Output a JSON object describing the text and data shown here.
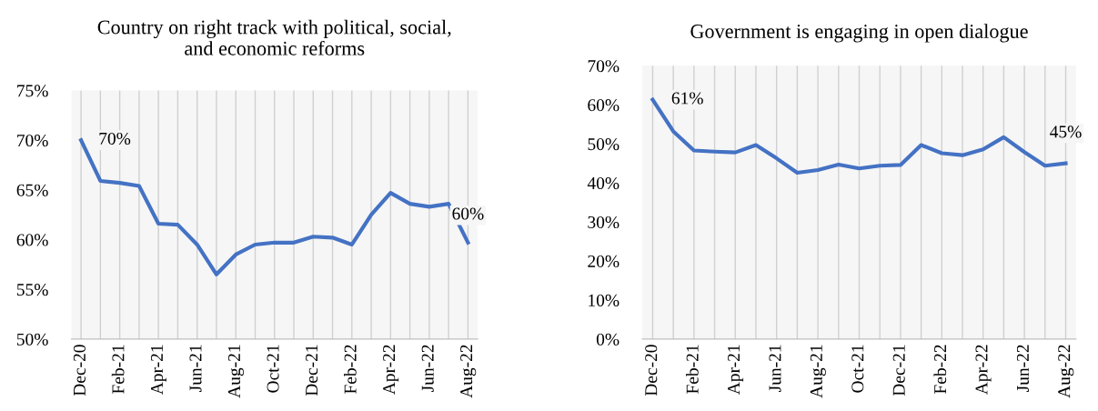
{
  "chart_data": [
    {
      "type": "line",
      "title": "Country on right track with political, social,\nand economic reforms",
      "categories": [
        "Dec-20",
        null,
        "Feb-21",
        null,
        "Apr-21",
        null,
        "Jun-21",
        null,
        "Aug-21",
        null,
        "Oct-21",
        null,
        "Dec-21",
        null,
        "Feb-22",
        null,
        "Apr-22",
        null,
        "Jun-22",
        null,
        "Aug-22"
      ],
      "series": [
        {
          "color": "#4472c4",
          "values": [
            70,
            65.9,
            65.7,
            65.4,
            61.6,
            61.5,
            59.5,
            56.5,
            58.5,
            59.5,
            59.7,
            59.7,
            60.3,
            60.2,
            59.5,
            62.5,
            64.7,
            63.6,
            63.3,
            63.6,
            59.7
          ],
          "value_labels": [
            "70%",
            null,
            null,
            null,
            null,
            null,
            null,
            null,
            null,
            null,
            null,
            null,
            null,
            null,
            null,
            null,
            null,
            null,
            null,
            null,
            "60%"
          ]
        }
      ],
      "ylim": [
        50,
        75
      ],
      "yticks": [
        {
          "value": 50,
          "label": "50%"
        },
        {
          "value": 55,
          "label": "55%"
        },
        {
          "value": 60,
          "label": "60%"
        },
        {
          "value": 65,
          "label": "65%"
        },
        {
          "value": 70,
          "label": "70%"
        },
        {
          "value": 75,
          "label": "75%"
        }
      ],
      "marker": "none",
      "line_style": "solid",
      "grid": "x"
    },
    {
      "type": "line",
      "title": "Government is engaging in open dialogue",
      "categories": [
        "Dec-20",
        null,
        "Feb-21",
        null,
        "Apr-21",
        null,
        "Jun-21",
        null,
        "Aug-21",
        null,
        "Oct-21",
        null,
        "Dec-21",
        null,
        "Feb-22",
        null,
        "Apr-22",
        null,
        "Jun-22",
        null,
        "Aug-22"
      ],
      "series": [
        {
          "color": "#4472c4",
          "values": [
            61.3,
            53.2,
            48.3,
            48.0,
            47.8,
            49.7,
            46.3,
            42.6,
            43.3,
            44.7,
            43.7,
            44.4,
            44.6,
            49.7,
            47.6,
            47.1,
            48.6,
            51.7,
            47.9,
            44.4,
            45.0
          ],
          "value_labels": [
            "61%",
            null,
            null,
            null,
            null,
            null,
            null,
            null,
            null,
            null,
            null,
            null,
            null,
            null,
            null,
            null,
            null,
            null,
            null,
            null,
            "45%"
          ]
        }
      ],
      "ylim": [
        0,
        70
      ],
      "yticks": [
        {
          "value": 0,
          "label": "0%"
        },
        {
          "value": 10,
          "label": "10%"
        },
        {
          "value": 20,
          "label": "20%"
        },
        {
          "value": 30,
          "label": "30%"
        },
        {
          "value": 40,
          "label": "40%"
        },
        {
          "value": 50,
          "label": "50%"
        },
        {
          "value": 60,
          "label": "60%"
        },
        {
          "value": 70,
          "label": "70%"
        }
      ],
      "marker": "none",
      "line_style": "solid",
      "grid": "x"
    }
  ]
}
